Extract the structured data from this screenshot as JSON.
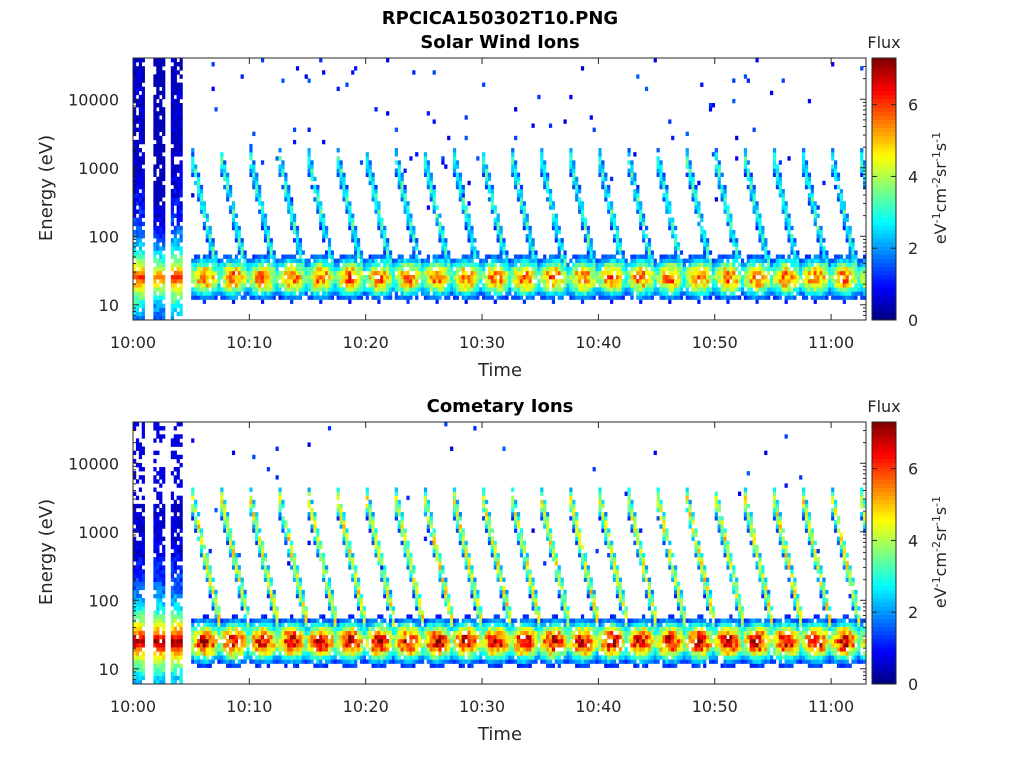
{
  "figure": {
    "title": "RPCICA150302T10.PNG"
  },
  "colormap": [
    "#00007f",
    "#0000ff",
    "#007fff",
    "#00ffff",
    "#7fff7f",
    "#ffff00",
    "#ff7f00",
    "#ff0000",
    "#7f0000"
  ],
  "chart_data": [
    {
      "type": "heatmap",
      "title": "Solar Wind Ions",
      "xlabel": "Time",
      "ylabel": "Energy (eV)",
      "x_range": [
        "10:00",
        "11:03"
      ],
      "x_ticks": [
        "10:00",
        "10:10",
        "10:20",
        "10:30",
        "10:40",
        "10:50",
        "11:00"
      ],
      "y_scale": "log",
      "y_range": [
        6,
        40000
      ],
      "y_ticks": [
        "10",
        "100",
        "1000",
        "10000"
      ],
      "colorbar": {
        "title": "Flux",
        "label": "eV-1cm-2sr-1s-1",
        "range": [
          0,
          7.3
        ],
        "ticks": [
          "0",
          "2",
          "4",
          "6"
        ]
      },
      "pattern": {
        "initial_block_end_min": 4.8,
        "cycle_period_min": 2.5,
        "peak_energy_ev": 25,
        "peak_flux": 5.8,
        "tail_peak_flux": 3.2
      }
    },
    {
      "type": "heatmap",
      "title": "Cometary Ions",
      "xlabel": "Time",
      "ylabel": "Energy (eV)",
      "x_range": [
        "10:00",
        "11:03"
      ],
      "x_ticks": [
        "10:00",
        "10:10",
        "10:20",
        "10:30",
        "10:40",
        "10:50",
        "11:00"
      ],
      "y_scale": "log",
      "y_range": [
        6,
        40000
      ],
      "y_ticks": [
        "10",
        "100",
        "1000",
        "10000"
      ],
      "colorbar": {
        "title": "Flux",
        "label": "eV-1cm-2sr-1s-1",
        "range": [
          0,
          7.3
        ],
        "ticks": [
          "0",
          "2",
          "4",
          "6"
        ]
      },
      "pattern": {
        "initial_block_end_min": 4.8,
        "cycle_period_min": 2.5,
        "peak_energy_ev": 25,
        "peak_flux": 6.8,
        "tail_peak_flux": 4.6
      }
    }
  ]
}
